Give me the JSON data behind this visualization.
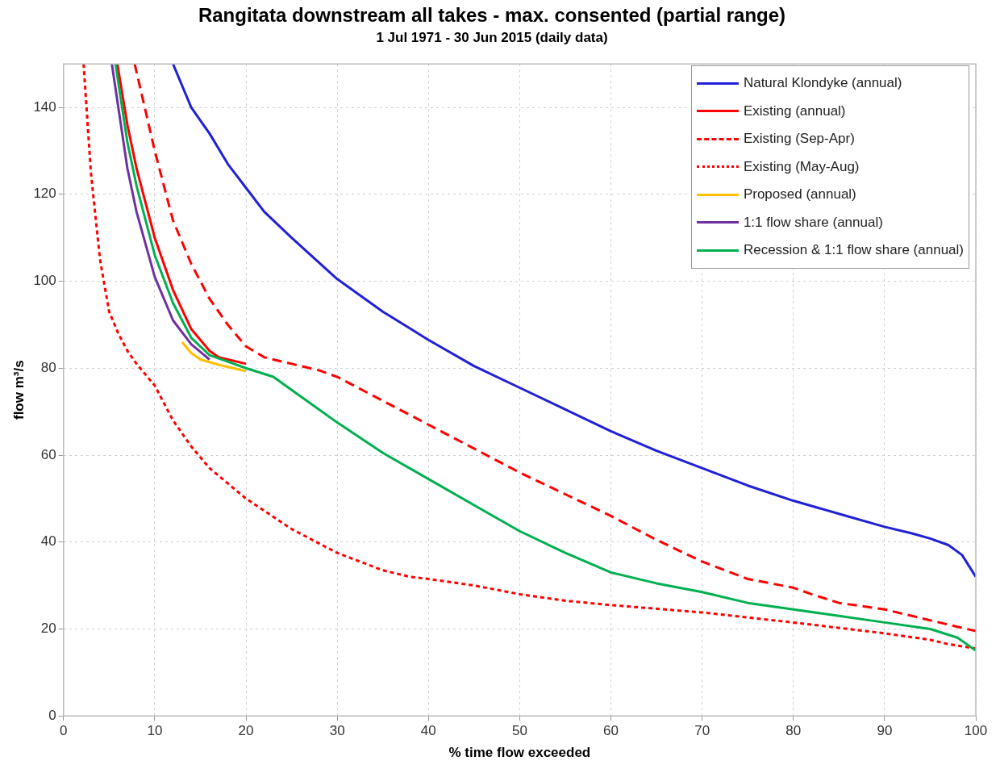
{
  "chart_data": {
    "type": "line",
    "title": "Rangitata downstream all takes - max. consented (partial range)",
    "subtitle": "1 Jul 1971 - 30 Jun 2015 (daily data)",
    "xlabel": "% time flow exceeded",
    "ylabel": "flow m³/s",
    "xlim": [
      0,
      100
    ],
    "xticks": [
      0,
      10,
      20,
      30,
      40,
      50,
      60,
      70,
      80,
      90,
      100
    ],
    "ylim": [
      0,
      150
    ],
    "yticks": [
      0,
      20,
      40,
      60,
      80,
      100,
      120,
      140
    ],
    "grid": true,
    "legend": "top right",
    "series": [
      {
        "name": "Natural Klondyke (annual)",
        "color": "#2020d8",
        "line_style": "solid",
        "x": [
          12,
          14,
          16,
          18,
          20,
          22,
          25,
          30,
          35,
          40,
          45,
          50,
          55,
          60,
          65,
          70,
          75,
          80,
          85,
          90,
          93,
          95,
          97,
          98.5,
          100
        ],
        "values": [
          150,
          140,
          134,
          127,
          121.5,
          116,
          110,
          100.5,
          93,
          86.5,
          80.5,
          75.5,
          70.5,
          65.5,
          61,
          57,
          53,
          49.5,
          46.5,
          43.5,
          42,
          40.8,
          39.3,
          37,
          32
        ]
      },
      {
        "name": "Existing (annual)",
        "color": "#ff0000",
        "line_style": "solid",
        "x": [
          5.9,
          7,
          8,
          10,
          12,
          14,
          16,
          17,
          20
        ],
        "values": [
          150,
          136,
          126,
          110,
          98,
          89,
          84,
          82.5,
          81
        ]
      },
      {
        "name": "Existing (Sep-Apr)",
        "color": "#ff0000",
        "line_style": "dashed",
        "x": [
          7.8,
          10,
          12,
          14,
          16,
          18,
          20,
          22,
          25,
          28,
          30,
          35,
          40,
          45,
          50,
          55,
          60,
          65,
          70,
          75,
          80,
          82,
          85,
          90,
          95,
          100
        ],
        "values": [
          150,
          130,
          114,
          104,
          96,
          90,
          85,
          82.5,
          81,
          79.5,
          78,
          72.5,
          67,
          61.5,
          56,
          51,
          46,
          40.5,
          35.5,
          31.5,
          29.5,
          28,
          26,
          24.5,
          22,
          19.5
        ]
      },
      {
        "name": "Existing (May-Aug)",
        "color": "#ff0000",
        "line_style": "dotted",
        "x": [
          2.2,
          3,
          4,
          5,
          6,
          7,
          8,
          10,
          12,
          14,
          16,
          20,
          25,
          30,
          35,
          38,
          40,
          45,
          50,
          55,
          60,
          70,
          80,
          90,
          95,
          97,
          100
        ],
        "values": [
          150,
          125,
          105,
          93,
          88,
          84,
          81,
          76,
          68,
          62,
          57,
          50,
          43,
          37.5,
          33.5,
          32,
          31.5,
          30,
          28,
          26.5,
          25.5,
          23.8,
          21.5,
          19,
          17.5,
          16.5,
          15.5
        ]
      },
      {
        "name": "Proposed (annual)",
        "color": "#ffc000",
        "line_style": "solid",
        "x": [
          13,
          14,
          15,
          17,
          20
        ],
        "values": [
          86,
          83.5,
          82,
          80.8,
          79.3
        ]
      },
      {
        "name": "1:1 flow share (annual)",
        "color": "#7030a0",
        "line_style": "solid",
        "x": [
          5.3,
          7,
          8,
          10,
          12,
          14,
          16
        ],
        "values": [
          150,
          126,
          116,
          101,
          91,
          85.5,
          82
        ]
      },
      {
        "name": "Recession & 1:1 flow share (annual)",
        "color": "#00b050",
        "line_style": "solid",
        "x": [
          5.7,
          7,
          8,
          10,
          12,
          14,
          16,
          18,
          20,
          23,
          25,
          30,
          35,
          40,
          45,
          50,
          55,
          60,
          65,
          70,
          75,
          80,
          85,
          90,
          95,
          98,
          100
        ],
        "values": [
          150,
          132,
          122,
          106,
          95,
          87,
          83,
          81.5,
          80,
          78,
          75,
          67.5,
          60.5,
          54.5,
          48.5,
          42.5,
          37.5,
          33,
          30.5,
          28.5,
          26,
          24.5,
          23,
          21.5,
          20,
          18,
          15
        ]
      }
    ]
  }
}
